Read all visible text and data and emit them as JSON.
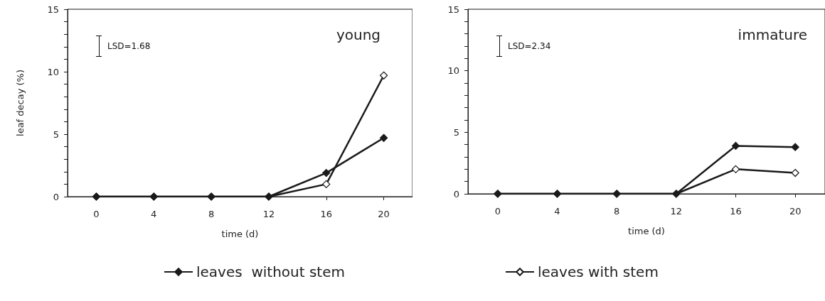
{
  "chart_data": [
    {
      "type": "line",
      "title": "young",
      "xlabel": "time (d)",
      "ylabel": "leaf decay (%)",
      "categories": [
        "0",
        "4",
        "8",
        "12",
        "16",
        "20"
      ],
      "series": [
        {
          "name": "leaves  without stem",
          "color": "#1a1a1a",
          "values": [
            0,
            0,
            0,
            0,
            1.9,
            4.7
          ]
        },
        {
          "color": "#1a1a1a",
          "values": [
            0,
            0,
            0,
            0,
            1.0,
            9.7
          ]
        }
      ],
      "ylim": [
        0,
        15
      ],
      "yticks": [
        0,
        {
          "value": 1,
          "label": null
        },
        {
          "value": 2,
          "label": null
        },
        {
          "value": 3,
          "label": null
        },
        {
          "value": 4,
          "label": null
        },
        5,
        {
          "value": 6,
          "label": null
        },
        {
          "value": 7,
          "label": null
        },
        {
          "value": 8,
          "label": null
        },
        {
          "value": 9,
          "label": null
        },
        10,
        {
          "value": 11,
          "label": null
        },
        {
          "value": 12,
          "label": null
        },
        {
          "value": 13,
          "label": null
        },
        {
          "value": 14,
          "label": null
        },
        15
      ],
      "annotations": [
        "LSD=1.68"
      ],
      "marker": "diamond",
      "grid": false,
      "legend": "bottom"
    },
    {
      "type": "line",
      "title": "immature",
      "xlabel": "time (d)",
      "categories": [
        "0",
        "4",
        "8",
        "12",
        "16",
        "20"
      ],
      "series": [
        {
          "color": "#1a1a1a",
          "values": [
            0,
            0,
            0,
            0,
            3.9,
            3.8
          ]
        },
        {
          "name": "leaves with stem",
          "color": "#1a1a1a",
          "values": [
            0,
            0,
            0,
            0,
            2.0,
            1.7
          ]
        }
      ],
      "ylim": [
        0,
        15
      ],
      "yticks": [
        0,
        {
          "value": 1,
          "label": null
        },
        {
          "value": 2,
          "label": null
        },
        {
          "value": 3,
          "label": null
        },
        {
          "value": 4,
          "label": null
        },
        5,
        {
          "value": 6,
          "label": null
        },
        {
          "value": 7,
          "label": null
        },
        {
          "value": 8,
          "label": null
        },
        {
          "value": 9,
          "label": null
        },
        10,
        {
          "value": 11,
          "label": null
        },
        {
          "value": 12,
          "label": null
        },
        {
          "value": 13,
          "label": null
        },
        {
          "value": 14,
          "label": null
        },
        15
      ],
      "annotations": [
        "LSD=2.34"
      ],
      "marker": "diamond",
      "grid": false,
      "legend": "bottom"
    }
  ]
}
